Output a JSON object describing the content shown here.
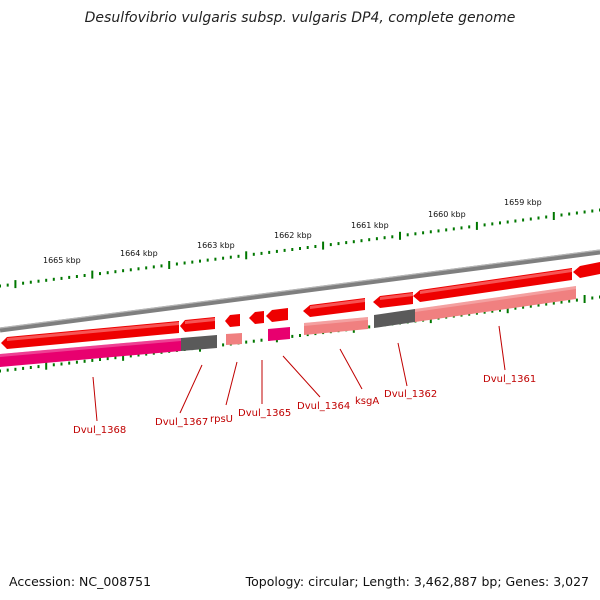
{
  "title": "Desulfovibrio vulgaris subsp. vulgaris DP4, complete genome",
  "footer": {
    "accession": "Accession: NC_008751",
    "summary": "Topology: circular; Length: 3,462,887 bp; Genes: 3,027"
  },
  "colors": {
    "backbone": "#808080",
    "gene_red": "#ee0000",
    "feature_pink": "#e8006f",
    "feature_gray": "#5a5a5a",
    "feature_salmon": "#f08080",
    "tick": "#007700",
    "label": "#c00000"
  },
  "ticks": [
    {
      "label": "1665 kbp"
    },
    {
      "label": "1664 kbp"
    },
    {
      "label": "1663 kbp"
    },
    {
      "label": "1662 kbp"
    },
    {
      "label": "1661 kbp"
    },
    {
      "label": "1660 kbp"
    },
    {
      "label": "1659 kbp"
    }
  ],
  "genes": [
    {
      "label": "Dvul_1368"
    },
    {
      "label": "Dvul_1367"
    },
    {
      "label": "rpsU"
    },
    {
      "label": "Dvul_1365"
    },
    {
      "label": "Dvul_1364"
    },
    {
      "label": "ksgA"
    },
    {
      "label": "Dvul_1362"
    },
    {
      "label": "Dvul_1361"
    }
  ]
}
